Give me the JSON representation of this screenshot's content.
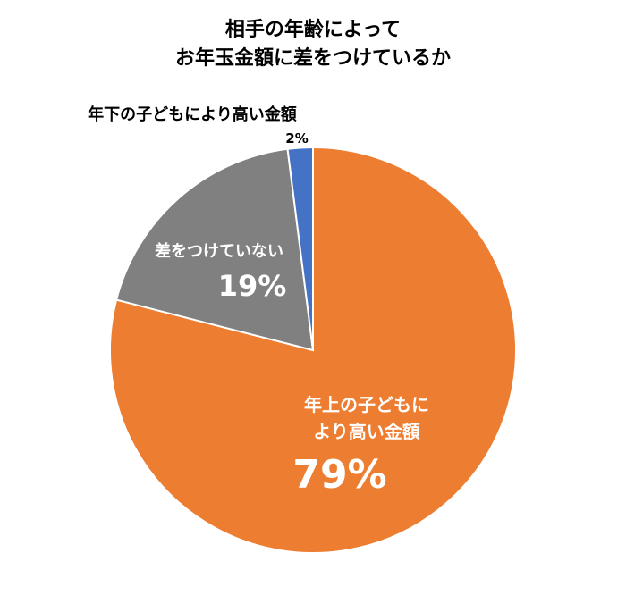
{
  "chart_data": {
    "type": "pie",
    "title_lines": [
      "相手の年齢によって",
      "お年玉金額に差をつけているか"
    ],
    "slices": [
      {
        "label": "年上の子どもにより高い金額",
        "label_lines": [
          "年上の子どもに",
          "より高い金額"
        ],
        "value": 79,
        "pct_label": "79%",
        "color": "#ED7D31"
      },
      {
        "label": "差をつけていない",
        "label_lines": [
          "差をつけていない"
        ],
        "value": 19,
        "pct_label": "19%",
        "color": "#808080"
      },
      {
        "label": "年下の子どもにより高い金額",
        "label_lines": [
          "年下の子どもにより高い金額"
        ],
        "value": 2,
        "pct_label": "2%",
        "color": "#4472C4"
      }
    ]
  }
}
